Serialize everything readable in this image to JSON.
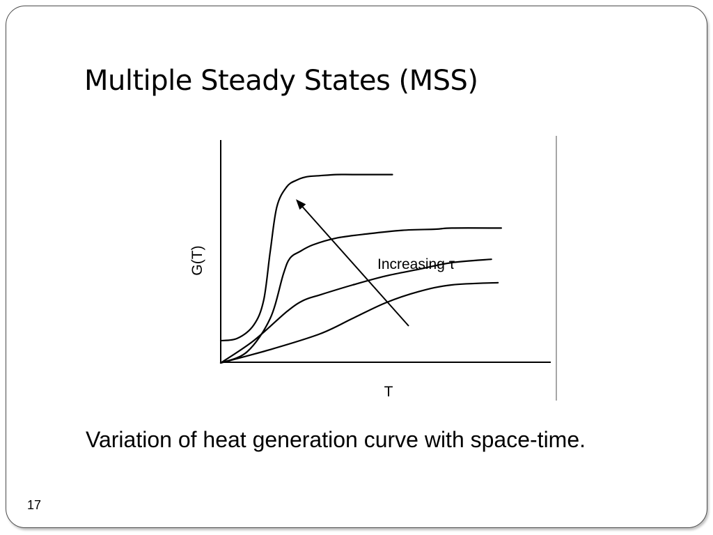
{
  "slide": {
    "title": "Multiple Steady States (MSS)",
    "caption": "Variation of heat generation curve with space-time.",
    "page_number": "17"
  },
  "chart_data": {
    "type": "line",
    "title": "",
    "xlabel": "T",
    "ylabel": "G(T)",
    "annotation": "Increasing τ",
    "grid": false,
    "legend": "none",
    "xlim": [
      0,
      10
    ],
    "ylim": [
      0,
      10
    ],
    "series": [
      {
        "x": [
          0,
          0.5,
          1.0,
          1.3,
          1.5,
          1.7,
          2.0,
          2.3,
          2.6,
          3.0,
          3.5,
          4.0,
          5.0,
          5.2
        ],
        "y": [
          1.0,
          1.1,
          1.7,
          2.8,
          5.0,
          7.0,
          7.9,
          8.2,
          8.35,
          8.4,
          8.45,
          8.45,
          8.45,
          8.45
        ]
      },
      {
        "x": [
          0,
          0.8,
          1.5,
          1.9,
          2.1,
          2.4,
          2.8,
          3.5,
          4.5,
          5.5,
          6.5,
          7.0,
          8.5
        ],
        "y": [
          0,
          0.5,
          2.0,
          4.0,
          4.7,
          5.0,
          5.3,
          5.6,
          5.8,
          5.95,
          6.0,
          6.05,
          6.05
        ]
      },
      {
        "x": [
          0,
          1.0,
          2.0,
          2.5,
          3.0,
          4.0,
          5.0,
          6.0,
          7.0,
          8.2
        ],
        "y": [
          0,
          1.0,
          2.3,
          2.8,
          3.05,
          3.5,
          3.9,
          4.2,
          4.5,
          4.65
        ]
      },
      {
        "x": [
          0,
          1.5,
          3.0,
          4.0,
          5.0,
          6.0,
          7.0,
          8.4
        ],
        "y": [
          0,
          0.6,
          1.3,
          2.0,
          2.7,
          3.2,
          3.5,
          3.6
        ]
      }
    ]
  }
}
